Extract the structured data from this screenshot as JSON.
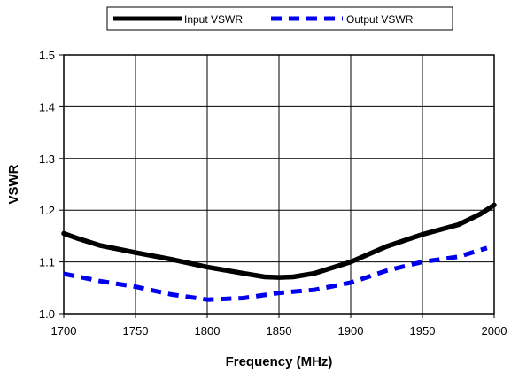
{
  "chart_data": {
    "type": "line",
    "title": "",
    "xlabel": "Frequency (MHz)",
    "ylabel": "VSWR",
    "xlim": [
      1700,
      2000
    ],
    "ylim": [
      1.0,
      1.5
    ],
    "x_ticks": [
      "1700",
      "1750",
      "1800",
      "1850",
      "1900",
      "1950",
      "2000"
    ],
    "y_ticks": [
      "1.0",
      "1.1",
      "1.2",
      "1.3",
      "1.4",
      "1.5"
    ],
    "grid": true,
    "legend_position": "top",
    "series": [
      {
        "name": "Input VSWR",
        "style": "solid",
        "color": "#000000",
        "x": [
          1700,
          1710,
          1725,
          1750,
          1775,
          1800,
          1825,
          1840,
          1850,
          1860,
          1875,
          1900,
          1925,
          1950,
          1975,
          1990,
          2000
        ],
        "y": [
          1.155,
          1.145,
          1.132,
          1.118,
          1.105,
          1.09,
          1.078,
          1.071,
          1.07,
          1.071,
          1.078,
          1.1,
          1.13,
          1.153,
          1.172,
          1.192,
          1.21
        ]
      },
      {
        "name": "Output VSWR",
        "style": "dashed",
        "color": "#0000ee",
        "x": [
          1700,
          1725,
          1750,
          1775,
          1800,
          1825,
          1850,
          1875,
          1900,
          1925,
          1950,
          1975,
          1995
        ],
        "y": [
          1.077,
          1.063,
          1.052,
          1.037,
          1.027,
          1.03,
          1.04,
          1.046,
          1.06,
          1.083,
          1.1,
          1.11,
          1.127
        ]
      }
    ]
  }
}
